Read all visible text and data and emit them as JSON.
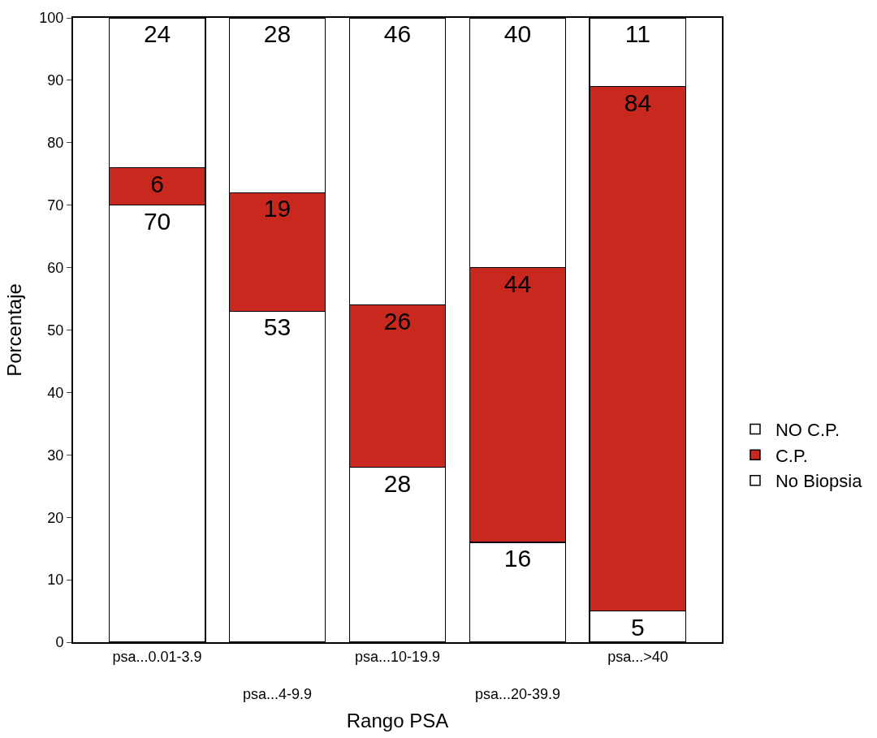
{
  "chart_data": {
    "type": "bar",
    "stacked": true,
    "xlabel": "Rango PSA",
    "ylabel": "Porcentaje",
    "categories": [
      "psa...0.01-3.9",
      "psa...4-9.9",
      "psa...10-19.9",
      "psa...20-39.9",
      "psa...>40"
    ],
    "series": [
      {
        "name": "No Biopsia",
        "color": "#ffffff",
        "values": [
          70,
          53,
          28,
          16,
          5
        ]
      },
      {
        "name": "C.P.",
        "color": "#c8281e",
        "values": [
          6,
          19,
          26,
          44,
          84
        ]
      },
      {
        "name": "NO C.P.",
        "color": "#ffffff",
        "values": [
          24,
          28,
          46,
          40,
          11
        ]
      }
    ],
    "ylim": [
      0,
      100
    ],
    "yticks": [
      0,
      10,
      20,
      30,
      40,
      50,
      60,
      70,
      80,
      90,
      100
    ],
    "grid": false,
    "legend": "right",
    "data_labels": true
  }
}
